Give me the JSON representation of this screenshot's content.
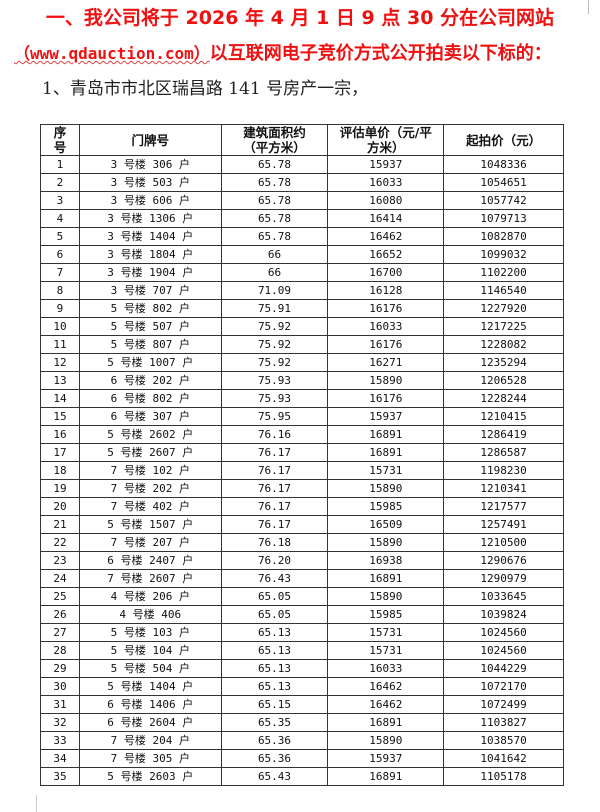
{
  "heading": {
    "line1": "一、我公司将于 2026 年 4 月 1 日 9 点 30 分在公司网站",
    "url": "（www.qdauction.com）",
    "line2_rest": "以互联网电子竞价方式公开拍卖以下标的：",
    "item": "1、青岛市市北区瑞昌路 141 号房产一宗，",
    "color": "#ee1111"
  },
  "table": {
    "headers": [
      "序号",
      "门牌号",
      "建筑面积约（平方米）",
      "评估单价（元/平方米）",
      "起拍价（元）"
    ],
    "rows": [
      [
        "1",
        "3 号楼 306 户",
        "65.78",
        "15937",
        "1048336"
      ],
      [
        "2",
        "3 号楼 503 户",
        "65.78",
        "16033",
        "1054651"
      ],
      [
        "3",
        "3 号楼 606 户",
        "65.78",
        "16080",
        "1057742"
      ],
      [
        "4",
        "3 号楼 1306 户",
        "65.78",
        "16414",
        "1079713"
      ],
      [
        "5",
        "3 号楼 1404 户",
        "65.78",
        "16462",
        "1082870"
      ],
      [
        "6",
        "3 号楼 1804 户",
        "66",
        "16652",
        "1099032"
      ],
      [
        "7",
        "3 号楼 1904 户",
        "66",
        "16700",
        "1102200"
      ],
      [
        "8",
        "3 号楼 707 户",
        "71.09",
        "16128",
        "1146540"
      ],
      [
        "9",
        "5 号楼 802 户",
        "75.91",
        "16176",
        "1227920"
      ],
      [
        "10",
        "5 号楼 507 户",
        "75.92",
        "16033",
        "1217225"
      ],
      [
        "11",
        "5 号楼 807 户",
        "75.92",
        "16176",
        "1228082"
      ],
      [
        "12",
        "5 号楼 1007 户",
        "75.92",
        "16271",
        "1235294"
      ],
      [
        "13",
        "6 号楼 202 户",
        "75.93",
        "15890",
        "1206528"
      ],
      [
        "14",
        "6 号楼 802 户",
        "75.93",
        "16176",
        "1228244"
      ],
      [
        "15",
        "6 号楼 307 户",
        "75.95",
        "15937",
        "1210415"
      ],
      [
        "16",
        "5 号楼 2602 户",
        "76.16",
        "16891",
        "1286419"
      ],
      [
        "17",
        "5 号楼 2607 户",
        "76.17",
        "16891",
        "1286587"
      ],
      [
        "18",
        "7 号楼 102 户",
        "76.17",
        "15731",
        "1198230"
      ],
      [
        "19",
        "7 号楼 202 户",
        "76.17",
        "15890",
        "1210341"
      ],
      [
        "20",
        "7 号楼 402 户",
        "76.17",
        "15985",
        "1217577"
      ],
      [
        "21",
        "5 号楼 1507 户",
        "76.17",
        "16509",
        "1257491"
      ],
      [
        "22",
        "7 号楼 207 户",
        "76.18",
        "15890",
        "1210500"
      ],
      [
        "23",
        "6 号楼 2407 户",
        "76.20",
        "16938",
        "1290676"
      ],
      [
        "24",
        "7 号楼 2607 户",
        "76.43",
        "16891",
        "1290979"
      ],
      [
        "25",
        "4 号楼 206 户",
        "65.05",
        "15890",
        "1033645"
      ],
      [
        "26",
        "4 号楼 406",
        "65.05",
        "15985",
        "1039824"
      ],
      [
        "27",
        "5 号楼 103 户",
        "65.13",
        "15731",
        "1024560"
      ],
      [
        "28",
        "5 号楼 104 户",
        "65.13",
        "15731",
        "1024560"
      ],
      [
        "29",
        "5 号楼 504 户",
        "65.13",
        "16033",
        "1044229"
      ],
      [
        "30",
        "5 号楼 1404 户",
        "65.13",
        "16462",
        "1072170"
      ],
      [
        "31",
        "6 号楼 1406 户",
        "65.15",
        "16462",
        "1072499"
      ],
      [
        "32",
        "6 号楼 2604 户",
        "65.35",
        "16891",
        "1103827"
      ],
      [
        "33",
        "7 号楼 204 户",
        "65.36",
        "15890",
        "1038570"
      ],
      [
        "34",
        "7 号楼 305 户",
        "65.36",
        "15937",
        "1041642"
      ],
      [
        "35",
        "5 号楼 2603 户",
        "65.43",
        "16891",
        "1105178"
      ]
    ]
  }
}
